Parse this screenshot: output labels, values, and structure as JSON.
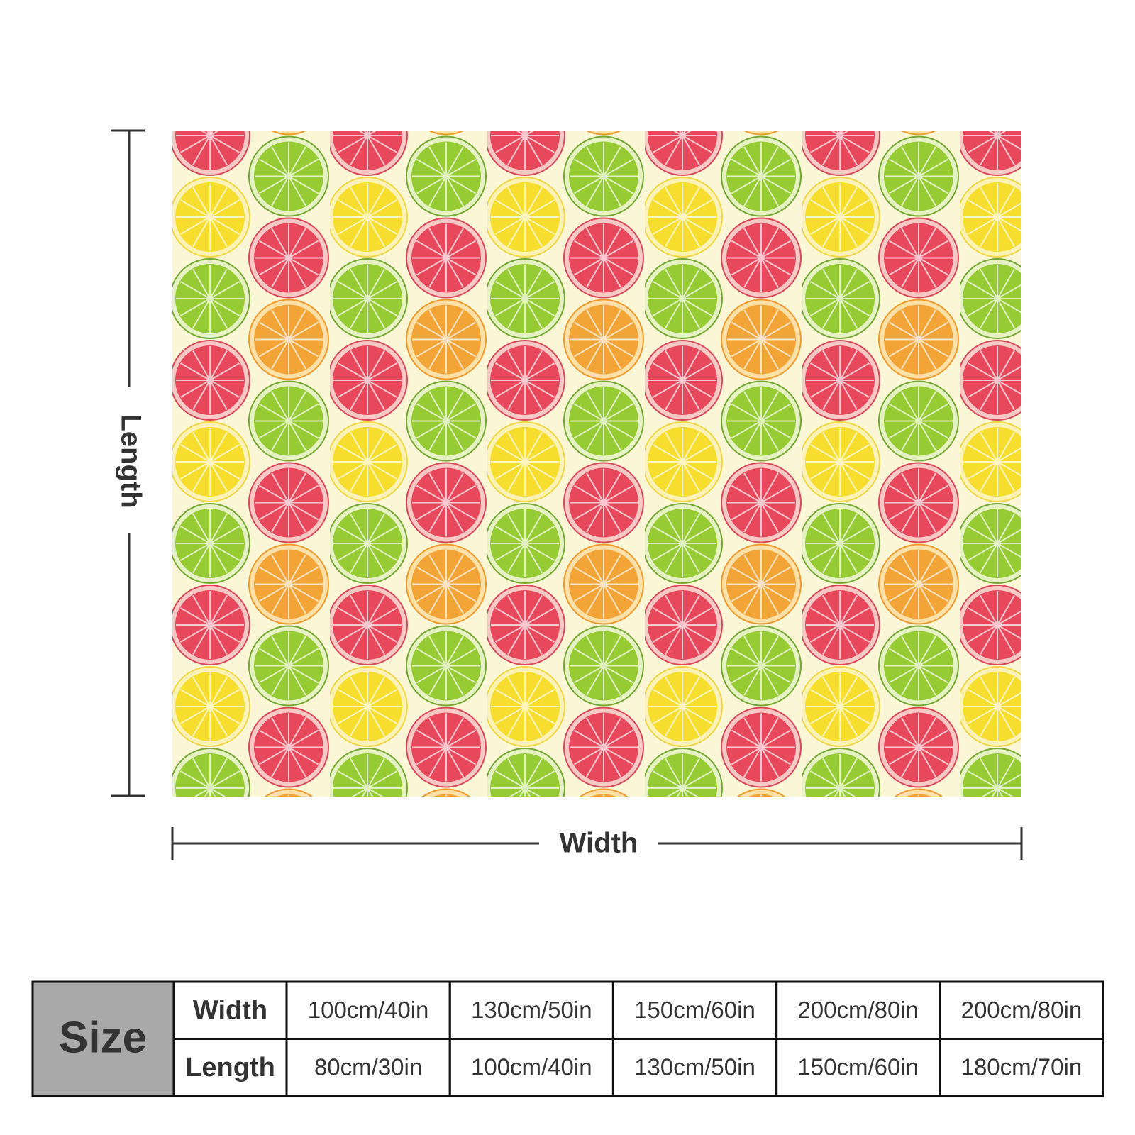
{
  "dimension_labels": {
    "length": "Length",
    "width": "Width"
  },
  "size_table": {
    "header": "Size",
    "rows": [
      {
        "label": "Width",
        "values": [
          "100cm/40in",
          "130cm/50in",
          "150cm/60in",
          "200cm/80in",
          "200cm/80in"
        ]
      },
      {
        "label": "Length",
        "values": [
          "80cm/30in",
          "100cm/40in",
          "130cm/50in",
          "150cm/60in",
          "180cm/70in"
        ]
      }
    ]
  }
}
